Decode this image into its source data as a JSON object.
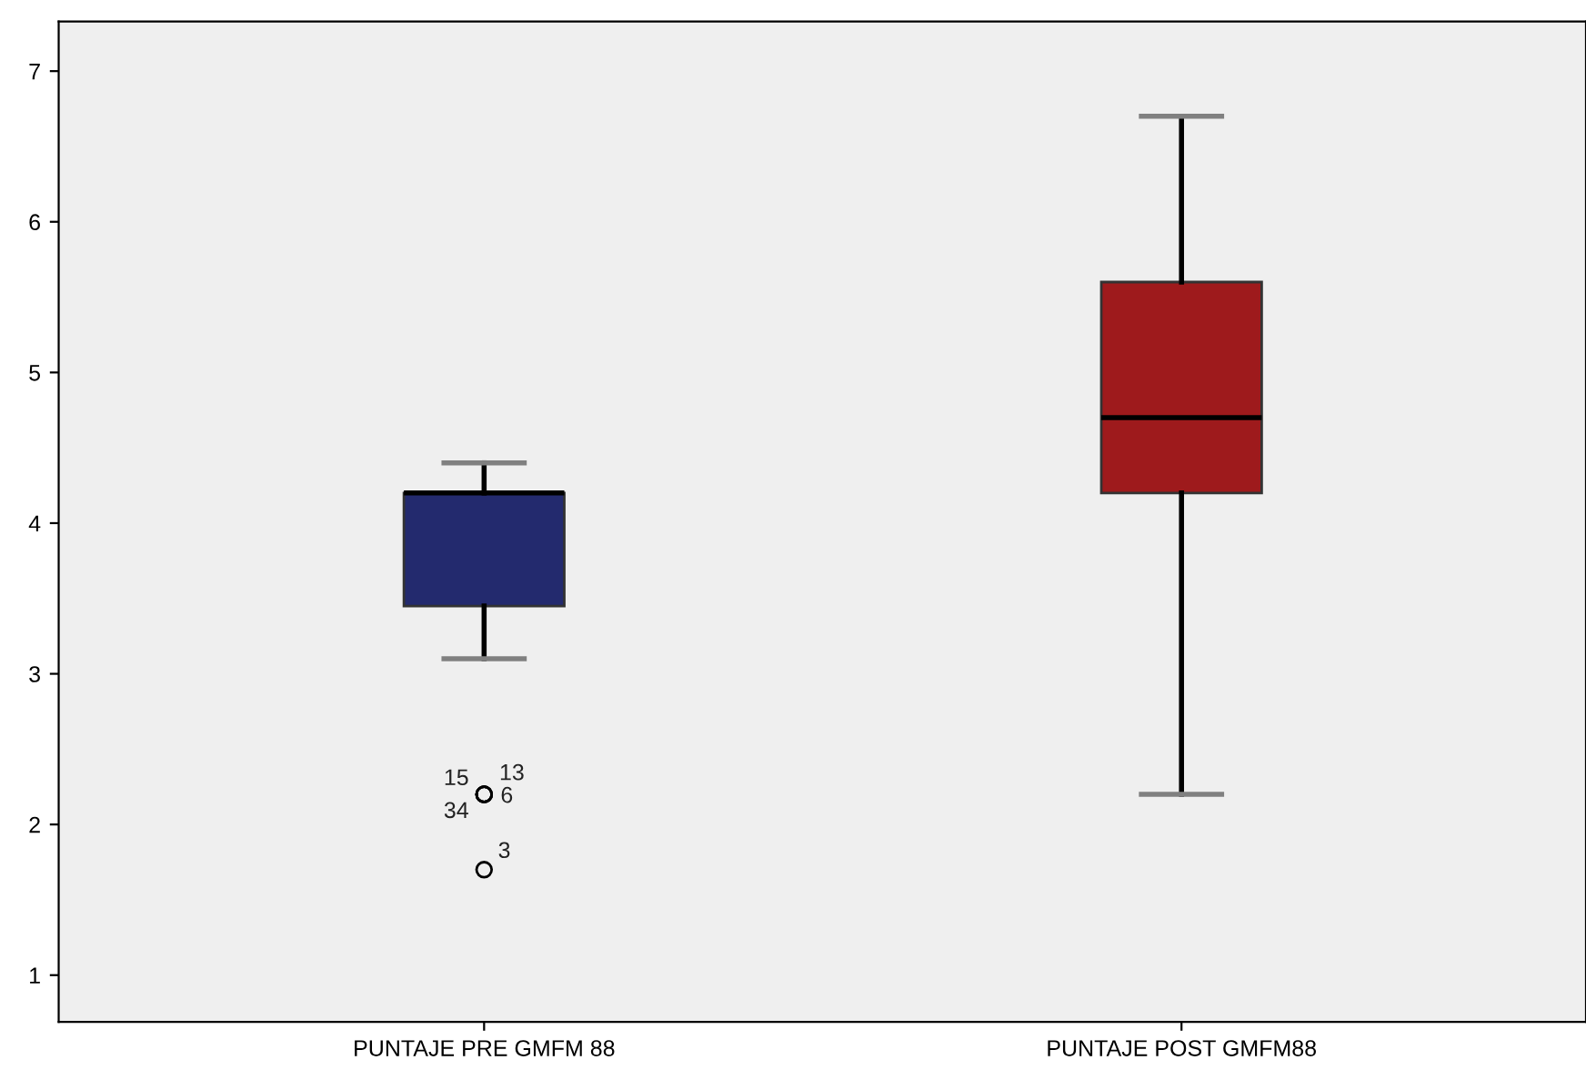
{
  "chart_data": {
    "type": "box",
    "categories": [
      "PUNTAJE PRE GMFM 88",
      "PUNTAJE POST GMFM88"
    ],
    "boxes": [
      {
        "low": 3.1,
        "q1": 3.45,
        "median": 4.2,
        "q3": 4.2,
        "high": 4.4,
        "outliers": [
          2.2,
          2.2,
          2.2,
          2.2,
          1.7
        ]
      },
      {
        "low": 2.2,
        "q1": 4.2,
        "median": 4.7,
        "q3": 5.6,
        "high": 6.7
      }
    ],
    "colors": [
      "#232a6e",
      "#9e1a1c"
    ],
    "ylim": [
      0.69,
      7.33
    ],
    "yticks": [
      1,
      2,
      3,
      4,
      5,
      6,
      7
    ],
    "grid": false,
    "legend": false,
    "annotations": [
      "15",
      "13",
      "6",
      "34",
      "3"
    ]
  }
}
